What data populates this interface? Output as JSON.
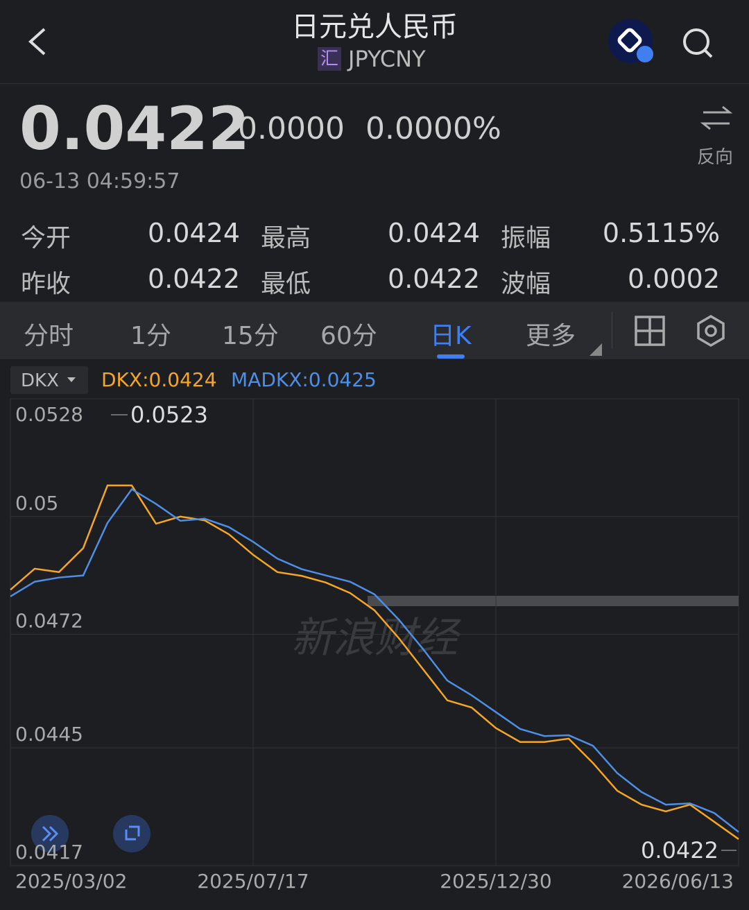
{
  "header": {
    "title": "日元兑人民币",
    "badge": "汇",
    "symbol": "JPYCNY"
  },
  "quote": {
    "price": "0.0422",
    "change": "0.0000",
    "change_pct": "0.0000%",
    "time": "06-13 04:59:57",
    "reverse": "反向"
  },
  "stats": [
    [
      {
        "label": "今开",
        "value": "0.0424"
      },
      {
        "label": "最高",
        "value": "0.0424"
      },
      {
        "label": "振幅",
        "value": "0.5115%"
      }
    ],
    [
      {
        "label": "昨收",
        "value": "0.0422"
      },
      {
        "label": "最低",
        "value": "0.0422"
      },
      {
        "label": "波幅",
        "value": "0.0002"
      }
    ]
  ],
  "tabs": [
    "分时",
    "1分",
    "15分",
    "60分",
    "日K",
    "更多"
  ],
  "indicator": "DKX",
  "chart_data": {
    "type": "line",
    "categories": [
      "2025/03/02",
      null,
      null,
      null,
      null,
      null,
      null,
      null,
      null,
      null,
      "2025/07/17",
      null,
      null,
      null,
      null,
      null,
      null,
      null,
      null,
      null,
      "2025/12/30",
      null,
      null,
      null,
      null,
      null,
      null,
      null,
      null,
      null,
      "2026/06/13"
    ],
    "series": [
      {
        "name": "DKX:0.0424",
        "color": "#f5a623",
        "values": [
          0.04826,
          0.04876,
          0.04868,
          0.04925,
          0.05074,
          0.05074,
          0.04983,
          0.05,
          0.04991,
          0.04958,
          0.04909,
          0.04868,
          0.04859,
          0.04843,
          0.04818,
          0.04777,
          0.04711,
          0.04637,
          0.04563,
          0.04546,
          0.04497,
          0.04464,
          0.04464,
          0.04472,
          0.04414,
          0.04348,
          0.04315,
          0.04299,
          0.04315,
          0.04274,
          0.04233
        ]
      },
      {
        "name": "MADKX:0.0425",
        "color": "#4e8fe6",
        "values": [
          0.0481,
          0.04845,
          0.04855,
          0.0486,
          0.04985,
          0.05065,
          0.0503,
          0.0499,
          0.04995,
          0.04975,
          0.0494,
          0.049,
          0.04875,
          0.0486,
          0.04845,
          0.04815,
          0.04755,
          0.04685,
          0.0461,
          0.04575,
          0.04535,
          0.04495,
          0.04478,
          0.0448,
          0.04455,
          0.0439,
          0.04345,
          0.04315,
          0.04318,
          0.04295,
          0.0425
        ]
      }
    ],
    "ylim": [
      0.0417,
      0.0528
    ],
    "yticks": [
      0.0528,
      0.05,
      0.0472,
      0.0445,
      0.0417
    ],
    "grid": true,
    "annotations": [
      "0.0523",
      "0.0422"
    ],
    "watermark": "新浪财经"
  }
}
